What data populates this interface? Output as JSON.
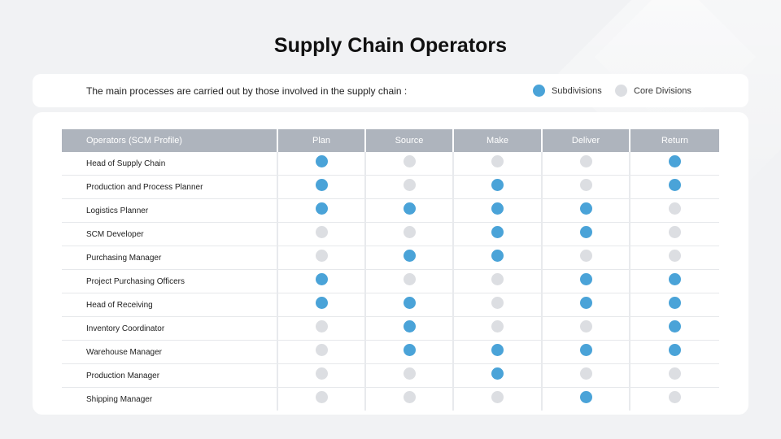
{
  "title": "Supply Chain Operators",
  "intro": "The main processes are carried out by those involved in the supply chain :",
  "colors": {
    "subdivisions": "#4aa3d8",
    "core": "#dcdee2",
    "header": "#aeb4bd"
  },
  "legend": [
    {
      "label": "Subdivisions",
      "type": "sub"
    },
    {
      "label": "Core Divisions",
      "type": "core"
    }
  ],
  "table": {
    "headers": [
      "Operators (SCM Profile)",
      "Plan",
      "Source",
      "Make",
      "Deliver",
      "Return"
    ],
    "rows": [
      {
        "role": "Head of Supply Chain",
        "cells": [
          "sub",
          "core",
          "core",
          "core",
          "sub"
        ]
      },
      {
        "role": "Production and Process Planner",
        "cells": [
          "sub",
          "core",
          "sub",
          "core",
          "sub"
        ]
      },
      {
        "role": "Logistics Planner",
        "cells": [
          "sub",
          "sub",
          "sub",
          "sub",
          "core"
        ]
      },
      {
        "role": "SCM Developer",
        "cells": [
          "core",
          "core",
          "sub",
          "sub",
          "core"
        ]
      },
      {
        "role": "Purchasing Manager",
        "cells": [
          "core",
          "sub",
          "sub",
          "core",
          "core"
        ]
      },
      {
        "role": "Project Purchasing Officers",
        "cells": [
          "sub",
          "core",
          "core",
          "sub",
          "sub"
        ]
      },
      {
        "role": "Head of Receiving",
        "cells": [
          "sub",
          "sub",
          "core",
          "sub",
          "sub"
        ]
      },
      {
        "role": "Inventory Coordinator",
        "cells": [
          "core",
          "sub",
          "core",
          "core",
          "sub"
        ]
      },
      {
        "role": "Warehouse Manager",
        "cells": [
          "core",
          "sub",
          "sub",
          "sub",
          "sub"
        ]
      },
      {
        "role": "Production Manager",
        "cells": [
          "core",
          "core",
          "sub",
          "core",
          "core"
        ]
      },
      {
        "role": "Shipping Manager",
        "cells": [
          "core",
          "core",
          "core",
          "sub",
          "core"
        ]
      }
    ]
  }
}
